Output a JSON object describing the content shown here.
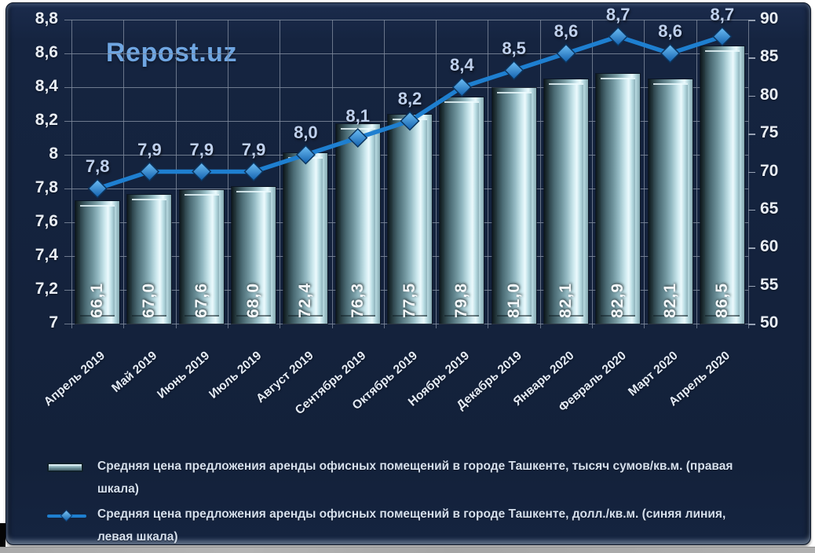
{
  "watermark": "Repost.uz",
  "colors": {
    "panel_background": "#152440",
    "gridline": "#7E899C",
    "axis_text": "#E9EEF5",
    "line_series": "#1E7FD0",
    "marker_fill_top": "#6FBFF5",
    "marker_fill_bottom": "#1160AD",
    "bar_highlight": "#EAFAFD",
    "bar_shadow": "#223439",
    "bar_value_text": "#F4F8FA",
    "line_value_text": "#BFD0EC",
    "watermark_text": "#6FA6E2",
    "legend_text": "#D5DFEC"
  },
  "chart_data": {
    "type": "bar",
    "subtype": "combo-bar-line-dual-axis",
    "grid": true,
    "legend_position": "bottom",
    "categories": [
      "Апрель 2019",
      "Май 2019",
      "Июнь 2019",
      "Июль 2019",
      "Август 2019",
      "Сентябрь 2019",
      "Октябрь 2019",
      "Ноябрь 2019",
      "Декабрь 2019",
      "Январь 2020",
      "Февраль 2020",
      "Март 2020",
      "Апрель 2020"
    ],
    "series": [
      {
        "name": "Средняя цена предложения аренды офисных помещений в городе Ташкенте, тысяч сумов/кв.м. (правая шкала)",
        "type": "bar",
        "axis": "right",
        "values": [
          66.1,
          67.0,
          67.6,
          68.0,
          72.4,
          76.3,
          77.5,
          79.8,
          81.0,
          82.1,
          82.9,
          82.1,
          86.5
        ],
        "labels": [
          "66,1",
          "67,0",
          "67,6",
          "68,0",
          "72,4",
          "76,3",
          "77,5",
          "79,8",
          "81,0",
          "82,1",
          "82,9",
          "82,1",
          "86,5"
        ]
      },
      {
        "name": "Средняя цена предложения аренды офисных помещений в городе Ташкенте, долл./кв.м. (синяя линия, левая шкала)",
        "type": "line",
        "axis": "left",
        "values": [
          7.8,
          7.9,
          7.9,
          7.9,
          8.0,
          8.1,
          8.2,
          8.4,
          8.5,
          8.6,
          8.7,
          8.6,
          8.7
        ],
        "labels": [
          "7,8",
          "7,9",
          "7,9",
          "7,9",
          "8,0",
          "8,1",
          "8,2",
          "8,4",
          "8,5",
          "8,6",
          "8,7",
          "8,6",
          "8,7"
        ]
      }
    ],
    "left_axis": {
      "min": 7,
      "max": 8.8,
      "step": 0.2,
      "ticks": [
        "8,8",
        "8,6",
        "8,4",
        "8,2",
        "8",
        "7,8",
        "7,6",
        "7,4",
        "7,2",
        "7"
      ]
    },
    "right_axis": {
      "min": 50,
      "max": 90,
      "step": 5,
      "ticks": [
        "90",
        "85",
        "80",
        "75",
        "70",
        "65",
        "60",
        "55",
        "50"
      ]
    },
    "title": "",
    "xlabel": "",
    "ylabel": ""
  },
  "legend": {
    "items": [
      {
        "label": "Средняя цена предложения аренды офисных помещений в городе Ташкенте, тысяч сумов/кв.м. (правая шкала)",
        "swatch": "bar"
      },
      {
        "label": "Средняя цена предложения аренды офисных помещений в городе Ташкенте, долл./кв.м. (синяя линия, левая шкала)",
        "swatch": "line"
      }
    ]
  }
}
